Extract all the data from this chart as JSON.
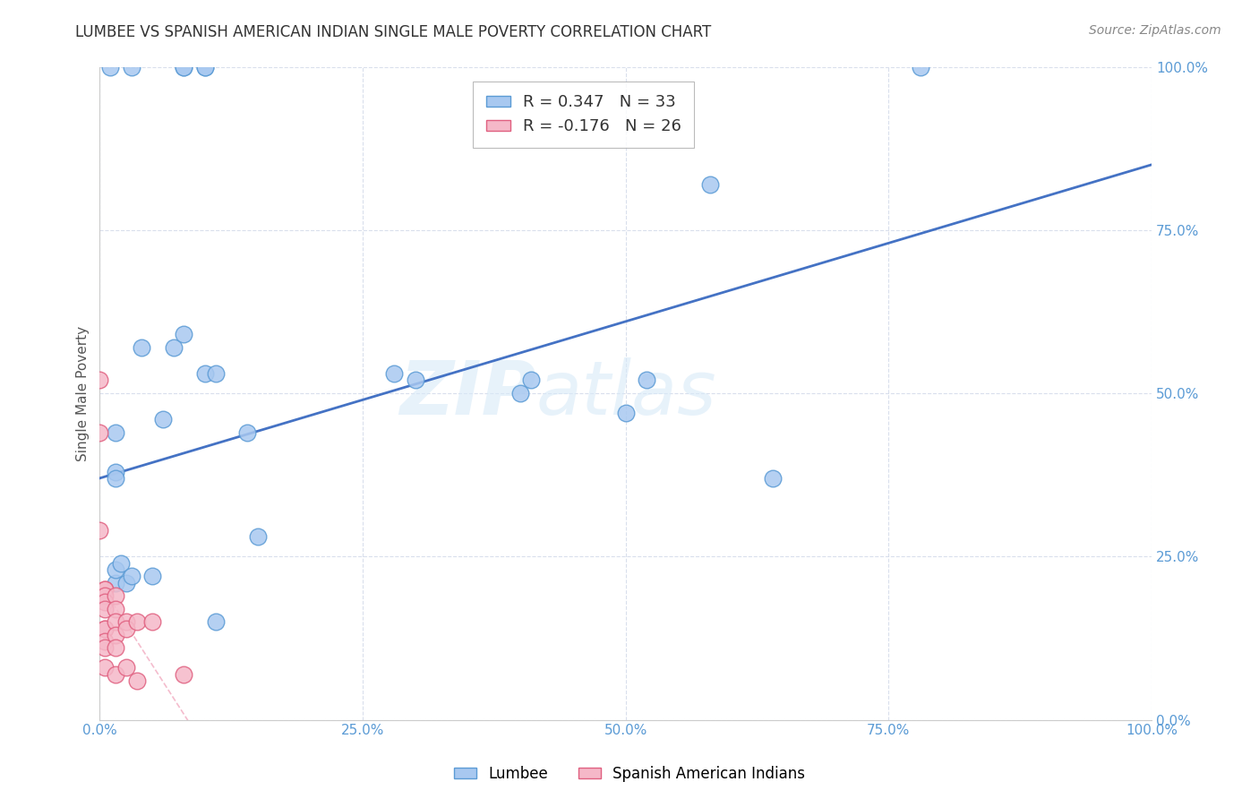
{
  "title": "LUMBEE VS SPANISH AMERICAN INDIAN SINGLE MALE POVERTY CORRELATION CHART",
  "source": "Source: ZipAtlas.com",
  "xlabel": "",
  "ylabel": "Single Male Poverty",
  "xlim": [
    0,
    1
  ],
  "ylim": [
    0,
    1
  ],
  "xticks": [
    0,
    0.25,
    0.5,
    0.75,
    1.0
  ],
  "yticks": [
    0,
    0.25,
    0.5,
    0.75,
    1.0
  ],
  "xticklabels": [
    "0.0%",
    "25.0%",
    "50.0%",
    "75.0%",
    "100.0%"
  ],
  "yticklabels": [
    "0.0%",
    "25.0%",
    "50.0%",
    "75.0%",
    "100.0%"
  ],
  "lumbee_R": 0.347,
  "lumbee_N": 33,
  "spanish_R": -0.176,
  "spanish_N": 26,
  "lumbee_color": "#a8c8f0",
  "lumbee_edge_color": "#5b9bd5",
  "spanish_color": "#f5b8c8",
  "spanish_edge_color": "#e06080",
  "trend_lumbee_color": "#4472c4",
  "trend_spanish_color": "#f0a0b8",
  "watermark": "ZIPatlas",
  "lumbee_x": [
    0.01,
    0.03,
    0.08,
    0.08,
    0.1,
    0.1,
    0.04,
    0.07,
    0.08,
    0.1,
    0.06,
    0.11,
    0.14,
    0.015,
    0.015,
    0.015,
    0.025,
    0.28,
    0.3,
    0.4,
    0.41,
    0.5,
    0.52,
    0.58,
    0.64,
    0.015,
    0.02,
    0.03,
    0.05,
    0.11,
    0.15,
    0.78,
    0.015
  ],
  "lumbee_y": [
    1.0,
    1.0,
    1.0,
    1.0,
    1.0,
    1.0,
    0.57,
    0.57,
    0.59,
    0.53,
    0.46,
    0.53,
    0.44,
    0.44,
    0.38,
    0.21,
    0.21,
    0.53,
    0.52,
    0.5,
    0.52,
    0.47,
    0.52,
    0.82,
    0.37,
    0.23,
    0.24,
    0.22,
    0.22,
    0.15,
    0.28,
    1.0,
    0.37
  ],
  "spanish_x": [
    0.0,
    0.0,
    0.0,
    0.005,
    0.005,
    0.005,
    0.005,
    0.005,
    0.005,
    0.005,
    0.005,
    0.005,
    0.005,
    0.015,
    0.015,
    0.015,
    0.015,
    0.015,
    0.015,
    0.025,
    0.025,
    0.025,
    0.035,
    0.035,
    0.05,
    0.08
  ],
  "spanish_y": [
    0.52,
    0.44,
    0.29,
    0.2,
    0.2,
    0.19,
    0.18,
    0.17,
    0.14,
    0.14,
    0.12,
    0.11,
    0.08,
    0.19,
    0.17,
    0.15,
    0.13,
    0.11,
    0.07,
    0.15,
    0.14,
    0.08,
    0.15,
    0.06,
    0.15,
    0.07
  ],
  "trend_lumbee_x0": 0.0,
  "trend_lumbee_y0": 0.37,
  "trend_lumbee_x1": 1.0,
  "trend_lumbee_y1": 0.85
}
